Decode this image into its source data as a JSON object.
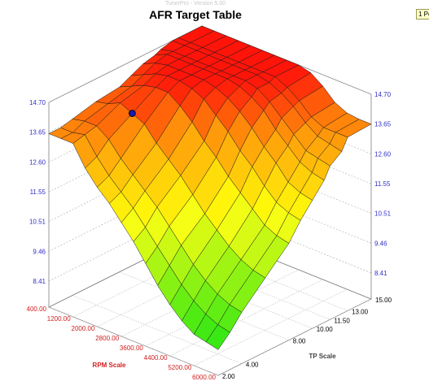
{
  "app": {
    "version_text": "TunerPro - Version 5.00"
  },
  "badge": {
    "label": "1 Po"
  },
  "colors": {
    "z_tick": "#3030c8",
    "rpm_tick": "#d02020",
    "tp_tick": "#000000",
    "selected_cell": "#1a1aa8"
  },
  "chart_data": {
    "type": "surface3d",
    "title": "AFR Target Table",
    "zlabel": "",
    "z_ticks": [
      "14.70",
      "13.65",
      "12.60",
      "11.55",
      "10.51",
      "9.46",
      "8.41"
    ],
    "z_range": [
      7.8,
      15.2
    ],
    "rpm_axis": {
      "label": "RPM Scale",
      "ticks": [
        "400.00",
        "1200.00",
        "2000.00",
        "2800.00",
        "3600.00",
        "4400.00",
        "5200.00",
        "6000.00"
      ]
    },
    "tp_axis": {
      "label": "TP Scale",
      "ticks": [
        "2.00",
        "4.00",
        "8.00",
        "10.00",
        "11.50",
        "13.00",
        "15.00"
      ]
    },
    "grid": true,
    "rpm_values": [
      400,
      800,
      1200,
      1600,
      2000,
      2400,
      2800,
      3200,
      3600,
      4000,
      4400,
      4800,
      5200,
      5600,
      6000
    ],
    "tp_values": [
      2,
      3,
      4,
      6,
      8,
      9,
      10,
      11,
      11.5,
      12.5,
      13,
      15
    ],
    "afr": [
      [
        13.6,
        13.6,
        13.7,
        13.9,
        14.0,
        14.2,
        14.4,
        14.5,
        14.6,
        14.7,
        14.7,
        14.7
      ],
      [
        13.6,
        13.6,
        13.8,
        14.0,
        14.2,
        14.4,
        14.6,
        14.7,
        14.7,
        14.7,
        14.7,
        14.7
      ],
      [
        13.6,
        13.7,
        13.8,
        14.2,
        14.4,
        14.6,
        14.7,
        14.7,
        14.7,
        14.7,
        14.7,
        14.7
      ],
      [
        12.9,
        13.1,
        13.5,
        14.0,
        14.5,
        14.7,
        14.7,
        14.7,
        14.7,
        14.7,
        14.7,
        14.7
      ],
      [
        12.4,
        12.6,
        13.0,
        13.8,
        14.5,
        14.7,
        14.7,
        14.7,
        14.7,
        14.7,
        14.7,
        14.7
      ],
      [
        12.0,
        12.2,
        12.6,
        13.3,
        14.2,
        14.6,
        14.7,
        14.7,
        14.7,
        14.7,
        14.7,
        14.7
      ],
      [
        11.5,
        11.8,
        12.2,
        12.9,
        13.8,
        14.4,
        14.6,
        14.7,
        14.7,
        14.7,
        14.7,
        14.7
      ],
      [
        11.0,
        11.3,
        11.8,
        12.5,
        13.3,
        14.0,
        14.4,
        14.6,
        14.7,
        14.7,
        14.7,
        14.7
      ],
      [
        10.4,
        10.8,
        11.3,
        12.0,
        12.9,
        13.6,
        14.1,
        14.4,
        14.6,
        14.6,
        14.7,
        14.7
      ],
      [
        9.8,
        10.3,
        10.8,
        11.5,
        12.4,
        13.1,
        13.7,
        14.1,
        14.3,
        14.4,
        14.5,
        14.6
      ],
      [
        9.3,
        9.8,
        10.3,
        11.1,
        12.0,
        12.7,
        13.2,
        13.6,
        13.9,
        14.1,
        14.2,
        14.3
      ],
      [
        8.9,
        9.4,
        9.9,
        10.7,
        11.6,
        12.2,
        12.8,
        13.2,
        13.5,
        13.7,
        13.8,
        13.9
      ],
      [
        8.6,
        9.1,
        9.6,
        10.4,
        11.2,
        11.8,
        12.3,
        12.8,
        13.1,
        13.4,
        13.6,
        13.7
      ],
      [
        8.5,
        8.9,
        9.4,
        10.2,
        11.0,
        11.6,
        12.1,
        12.6,
        13.0,
        13.3,
        13.6,
        13.65
      ],
      [
        8.4,
        8.8,
        9.3,
        10.1,
        10.9,
        11.5,
        12.0,
        12.5,
        12.9,
        13.2,
        13.6,
        13.65
      ]
    ],
    "selected_cell": {
      "rpm": 1600,
      "tp": 6
    }
  }
}
